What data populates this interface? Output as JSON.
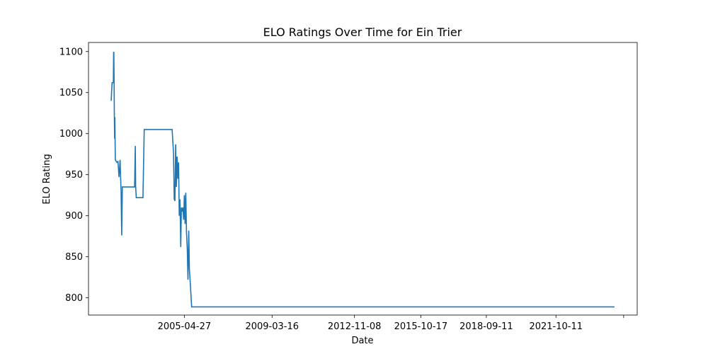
{
  "chart_data": {
    "type": "line",
    "title": "ELO Ratings Over Time for Ein Trier",
    "xlabel": "Date",
    "ylabel": "ELO Rating",
    "ylim": [
      779,
      1111
    ],
    "xlim": [
      "2001-01-28",
      "2025-05-17"
    ],
    "yticks": [
      800,
      850,
      900,
      950,
      1000,
      1050,
      1100
    ],
    "xticks": [
      {
        "date": "2005-04-27",
        "label": "2005-04-27"
      },
      {
        "date": "2009-03-16",
        "label": "2009-03-16"
      },
      {
        "date": "2012-11-08",
        "label": "2012-11-08"
      },
      {
        "date": "2015-10-17",
        "label": "2015-10-17"
      },
      {
        "date": "2018-09-11",
        "label": "2018-09-11"
      },
      {
        "date": "2021-10-11",
        "label": "2021-10-11"
      },
      {
        "date": "2024-10-10",
        "label": ""
      }
    ],
    "grid": false,
    "color": "#1f77b4",
    "series": [
      {
        "points": [
          [
            "2002-01-29",
            1040
          ],
          [
            "2002-02-13",
            1062
          ],
          [
            "2002-03-06",
            1062
          ],
          [
            "2002-03-10",
            1099
          ],
          [
            "2002-03-14",
            1099
          ],
          [
            "2002-03-18",
            1060
          ],
          [
            "2002-03-22",
            1022
          ],
          [
            "2002-03-26",
            994
          ],
          [
            "2002-03-30",
            1020
          ],
          [
            "2002-04-07",
            968
          ],
          [
            "2002-05-01",
            965
          ],
          [
            "2002-05-19",
            966
          ],
          [
            "2002-06-05",
            947
          ],
          [
            "2002-06-23",
            968
          ],
          [
            "2002-07-09",
            930
          ],
          [
            "2002-07-19",
            876
          ],
          [
            "2002-07-29",
            935
          ],
          [
            "2003-02-12",
            935
          ],
          [
            "2003-02-24",
            985
          ],
          [
            "2003-03-02",
            935
          ],
          [
            "2003-03-12",
            922
          ],
          [
            "2003-06-28",
            922
          ],
          [
            "2003-07-18",
            1005
          ],
          [
            "2004-10-11",
            1005
          ],
          [
            "2004-11-03",
            976
          ],
          [
            "2004-11-15",
            920
          ],
          [
            "2004-11-26",
            918
          ],
          [
            "2004-12-08",
            987
          ],
          [
            "2004-12-19",
            935
          ],
          [
            "2004-12-31",
            972
          ],
          [
            "2005-01-12",
            945
          ],
          [
            "2005-01-24",
            965
          ],
          [
            "2005-02-04",
            900
          ],
          [
            "2005-02-16",
            920
          ],
          [
            "2005-02-28",
            862
          ],
          [
            "2005-03-11",
            910
          ],
          [
            "2005-03-23",
            905
          ],
          [
            "2005-04-04",
            910
          ],
          [
            "2005-04-16",
            895
          ],
          [
            "2005-04-27",
            925
          ],
          [
            "2005-05-09",
            890
          ],
          [
            "2005-05-21",
            928
          ],
          [
            "2005-06-01",
            880
          ],
          [
            "2005-06-13",
            860
          ],
          [
            "2005-06-25",
            822
          ],
          [
            "2005-07-07",
            882
          ],
          [
            "2005-07-18",
            835
          ],
          [
            "2005-07-30",
            820
          ],
          [
            "2005-08-23",
            789
          ],
          [
            "2024-05-13",
            789
          ]
        ]
      }
    ]
  }
}
